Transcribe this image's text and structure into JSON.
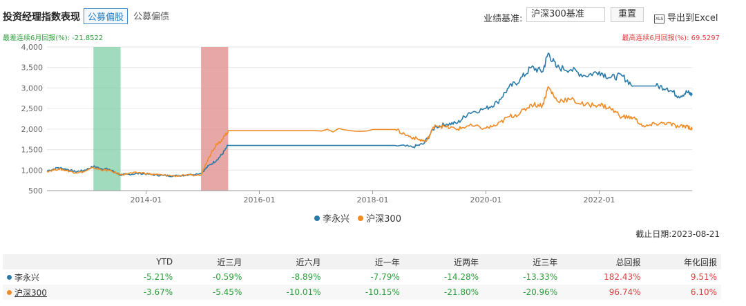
{
  "header": {
    "title": "投资经理指数表现",
    "tab_active": "公募偏股",
    "tab_inactive": "公募偏债",
    "bench_label": "业绩基准:",
    "bench_value": "沪深300基准",
    "reset_label": "重置",
    "export_label": "导出到Excel",
    "export_icon_text": "XLS"
  },
  "stats": {
    "worst_label": "最差连续6月回报(%):",
    "worst_value": "-21.8522",
    "best_label": "最高连续6月回报(%):",
    "best_value": "69.5297"
  },
  "chart_data": {
    "type": "line",
    "y_ticks": [
      "500",
      "1,000",
      "1,500",
      "2,000",
      "2,500",
      "3,000",
      "3,500",
      "4,000"
    ],
    "ylim": [
      500,
      4000
    ],
    "x_ticks": [
      "2014-01",
      "2016-01",
      "2018-01",
      "2020-01",
      "2022-01"
    ],
    "xlim": [
      2012.25,
      2023.64
    ],
    "bands": [
      {
        "from": 2013.07,
        "to": 2013.55,
        "color": "#7fcfa6"
      },
      {
        "from": 2014.97,
        "to": 2015.45,
        "color": "#e08a8a"
      }
    ],
    "series": [
      {
        "name": "李永兴",
        "color": "#2a7aa8",
        "points": [
          [
            2012.25,
            980
          ],
          [
            2012.45,
            1060
          ],
          [
            2012.6,
            1020
          ],
          [
            2012.75,
            960
          ],
          [
            2012.9,
            990
          ],
          [
            2013.07,
            1090
          ],
          [
            2013.2,
            1040
          ],
          [
            2013.35,
            1020
          ],
          [
            2013.55,
            880
          ],
          [
            2013.7,
            900
          ],
          [
            2013.9,
            920
          ],
          [
            2014.1,
            890
          ],
          [
            2014.3,
            870
          ],
          [
            2014.5,
            860
          ],
          [
            2014.7,
            880
          ],
          [
            2014.97,
            920
          ],
          [
            2015.1,
            1100
          ],
          [
            2015.25,
            1250
          ],
          [
            2015.35,
            1400
          ],
          [
            2015.45,
            1600
          ],
          [
            2016.0,
            1600
          ],
          [
            2017.0,
            1600
          ],
          [
            2018.0,
            1600
          ],
          [
            2018.4,
            1600
          ],
          [
            2018.7,
            1560
          ],
          [
            2018.9,
            1640
          ],
          [
            2019.1,
            2050
          ],
          [
            2019.3,
            2120
          ],
          [
            2019.5,
            2150
          ],
          [
            2019.7,
            2400
          ],
          [
            2020.0,
            2500
          ],
          [
            2020.2,
            2650
          ],
          [
            2020.4,
            3000
          ],
          [
            2020.6,
            3200
          ],
          [
            2020.8,
            3500
          ],
          [
            2021.0,
            3400
          ],
          [
            2021.1,
            3850
          ],
          [
            2021.25,
            3500
          ],
          [
            2021.5,
            3450
          ],
          [
            2021.75,
            3300
          ],
          [
            2022.0,
            3400
          ],
          [
            2022.2,
            3250
          ],
          [
            2022.4,
            3300
          ],
          [
            2022.6,
            3050
          ],
          [
            2022.8,
            3050
          ],
          [
            2023.0,
            3050
          ],
          [
            2023.2,
            3000
          ],
          [
            2023.4,
            2800
          ],
          [
            2023.55,
            2900
          ],
          [
            2023.64,
            2830
          ]
        ]
      },
      {
        "name": "沪深300",
        "color": "#f08a24",
        "points": [
          [
            2012.25,
            970
          ],
          [
            2012.45,
            1030
          ],
          [
            2012.6,
            990
          ],
          [
            2012.75,
            940
          ],
          [
            2012.9,
            960
          ],
          [
            2013.07,
            1060
          ],
          [
            2013.2,
            1010
          ],
          [
            2013.35,
            990
          ],
          [
            2013.55,
            890
          ],
          [
            2013.7,
            920
          ],
          [
            2013.9,
            940
          ],
          [
            2014.1,
            900
          ],
          [
            2014.3,
            880
          ],
          [
            2014.5,
            860
          ],
          [
            2014.7,
            870
          ],
          [
            2014.97,
            880
          ],
          [
            2015.1,
            1300
          ],
          [
            2015.25,
            1650
          ],
          [
            2015.35,
            1750
          ],
          [
            2015.45,
            1960
          ],
          [
            2016.0,
            1960
          ],
          [
            2017.0,
            1960
          ],
          [
            2018.0,
            1990
          ],
          [
            2018.4,
            1990
          ],
          [
            2018.6,
            1850
          ],
          [
            2018.8,
            1750
          ],
          [
            2018.95,
            1700
          ],
          [
            2019.1,
            2100
          ],
          [
            2019.3,
            2050
          ],
          [
            2019.5,
            2000
          ],
          [
            2019.7,
            2080
          ],
          [
            2020.0,
            2020
          ],
          [
            2020.2,
            2100
          ],
          [
            2020.4,
            2300
          ],
          [
            2020.6,
            2380
          ],
          [
            2020.8,
            2600
          ],
          [
            2021.0,
            2580
          ],
          [
            2021.1,
            3030
          ],
          [
            2021.25,
            2700
          ],
          [
            2021.5,
            2720
          ],
          [
            2021.75,
            2580
          ],
          [
            2022.0,
            2600
          ],
          [
            2022.2,
            2500
          ],
          [
            2022.4,
            2300
          ],
          [
            2022.6,
            2280
          ],
          [
            2022.8,
            2050
          ],
          [
            2023.0,
            2130
          ],
          [
            2023.2,
            2150
          ],
          [
            2023.4,
            2050
          ],
          [
            2023.55,
            2080
          ],
          [
            2023.64,
            1990
          ]
        ]
      }
    ]
  },
  "legend": [
    "李永兴",
    "沪深300"
  ],
  "cutoff": "截止日期:2023-08-21",
  "table": {
    "headers": [
      "",
      "YTD",
      "近三月",
      "近六月",
      "近一年",
      "近两年",
      "近三年",
      "总回报",
      "年化回报"
    ],
    "rows": [
      {
        "name": "李永兴",
        "color": "#2a7aa8",
        "cells": [
          "-5.21%",
          "-0.59%",
          "-8.89%",
          "-7.79%",
          "-14.28%",
          "-13.33%",
          "182.43%",
          "9.51%"
        ]
      },
      {
        "name": "沪深300",
        "color": "#f08a24",
        "cells": [
          "-3.67%",
          "-5.45%",
          "-10.01%",
          "-10.15%",
          "-21.80%",
          "-20.96%",
          "96.74%",
          "6.10%"
        ]
      }
    ]
  }
}
